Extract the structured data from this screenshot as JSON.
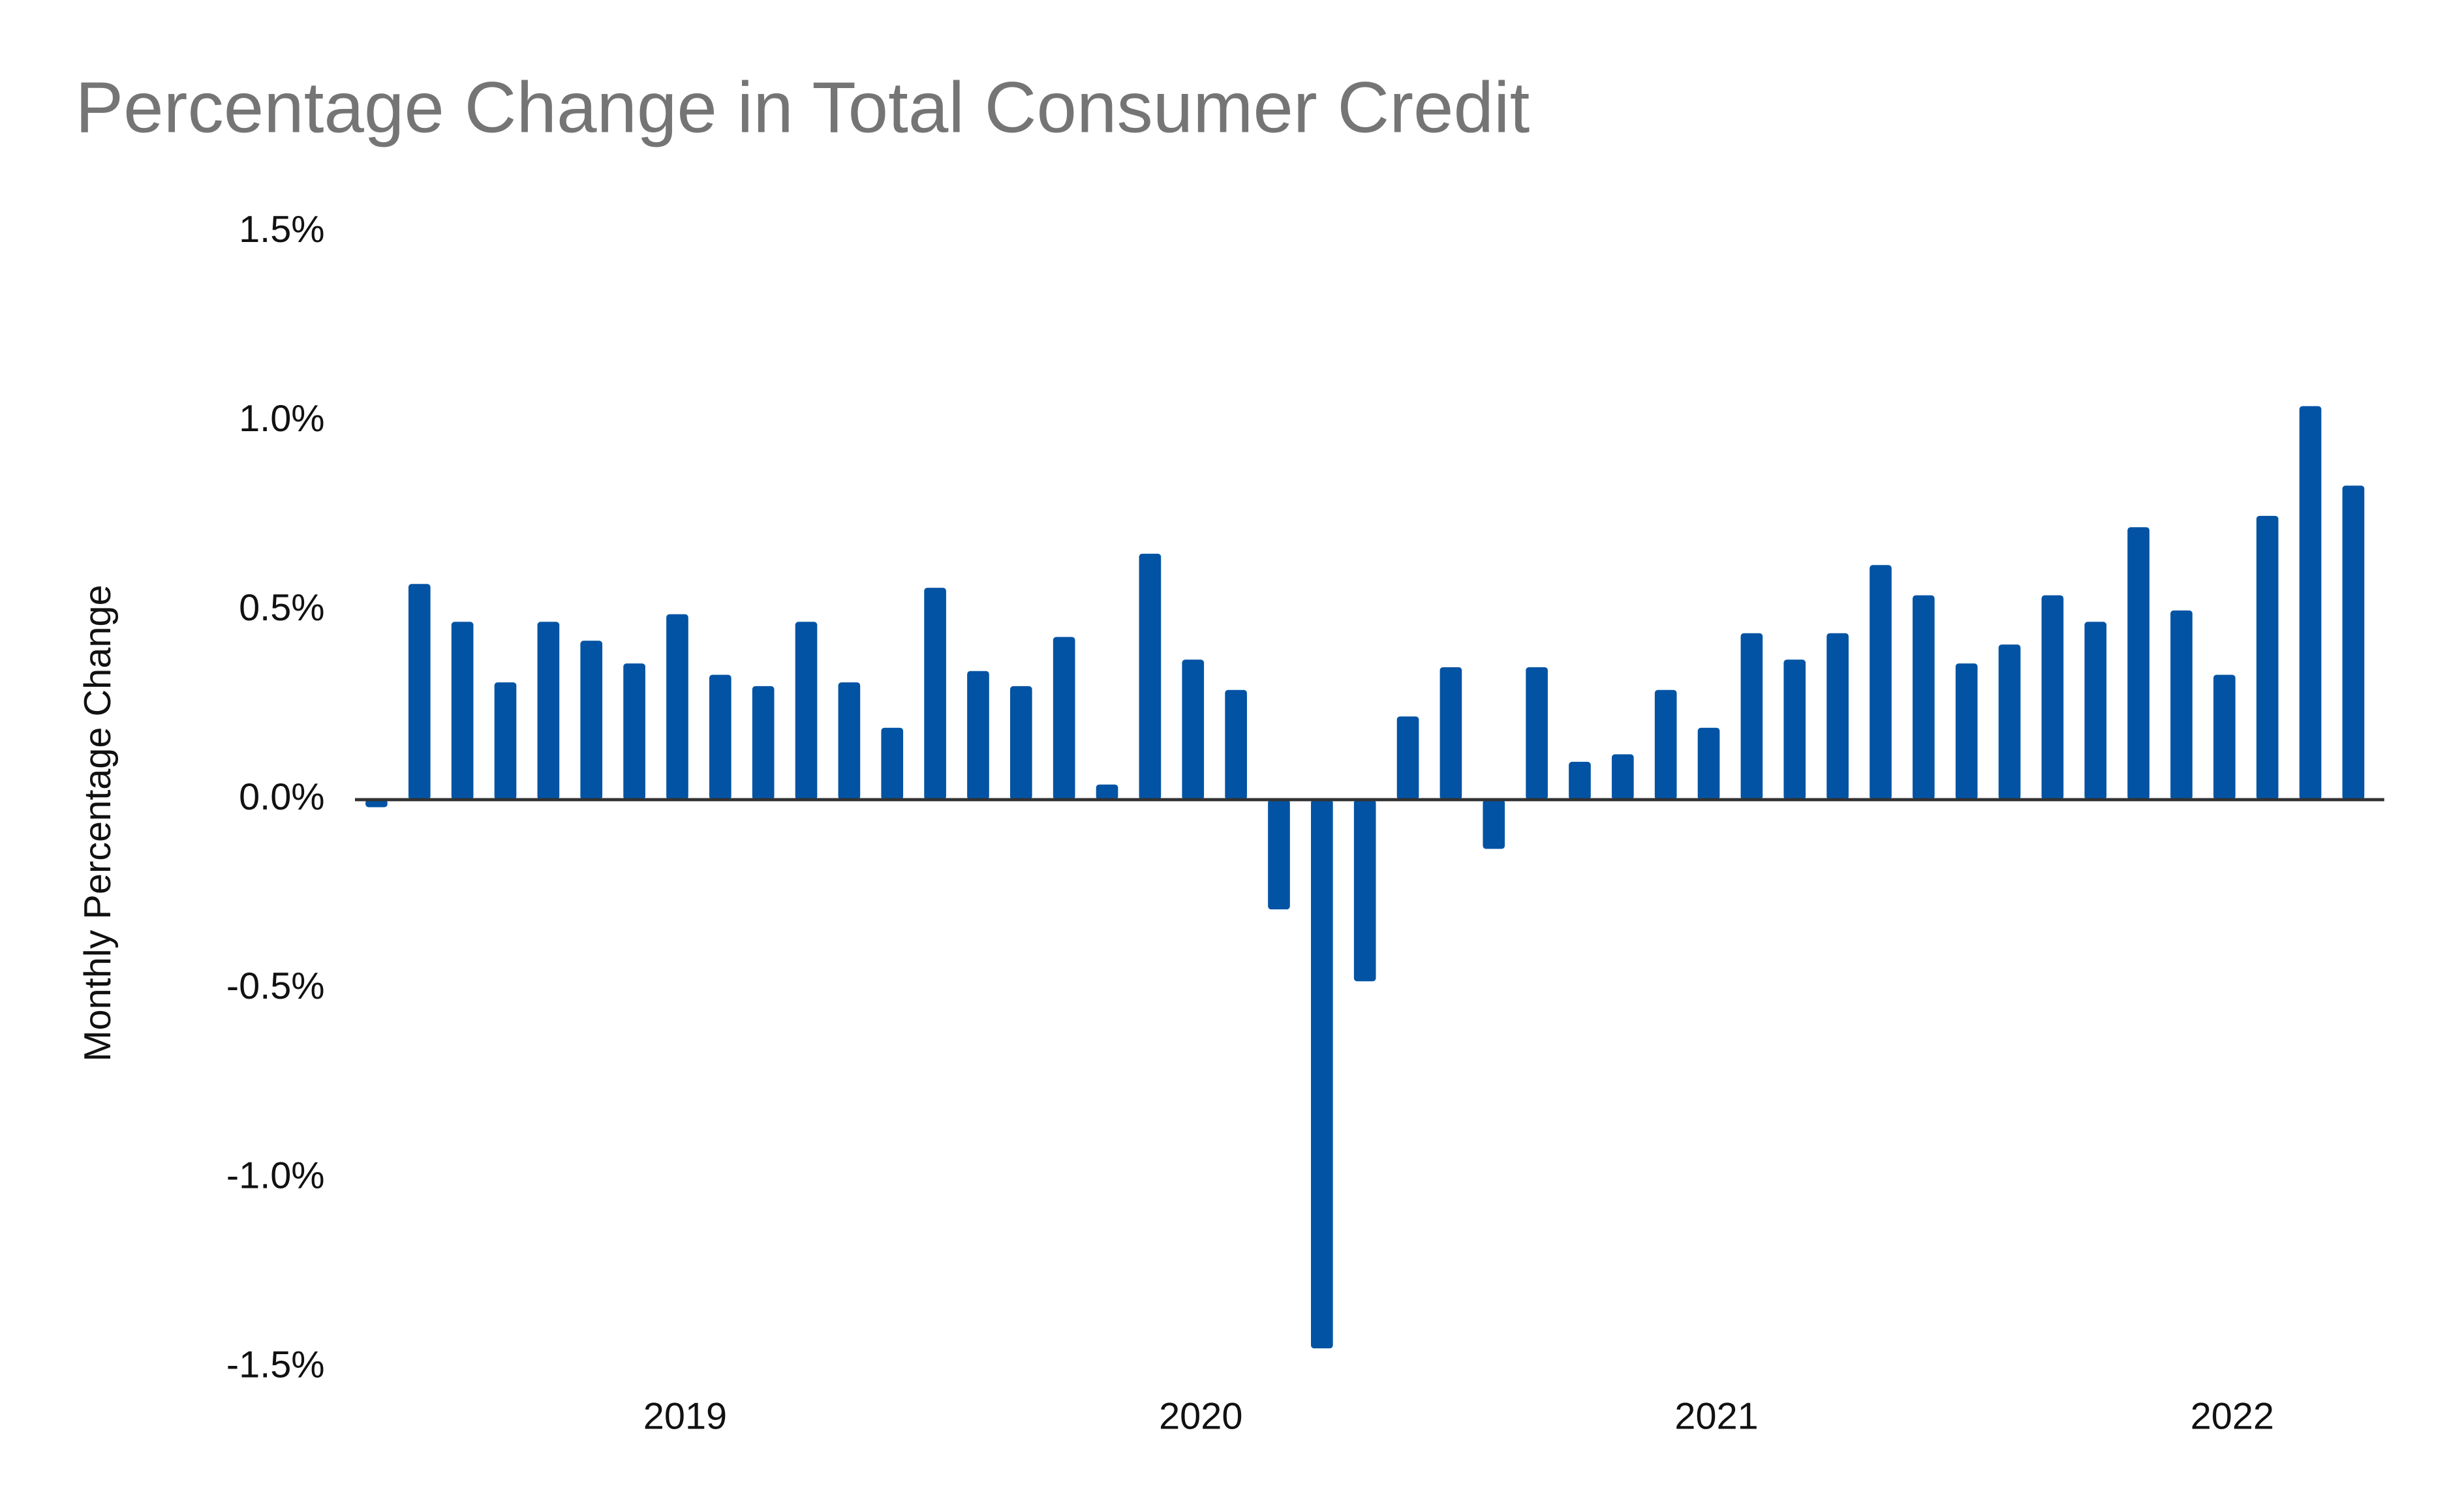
{
  "chart_data": {
    "type": "bar",
    "title": "Percentage Change in Total Consumer Credit",
    "y_label": "Monthly Percentage Change",
    "categories": [
      null,
      null,
      null,
      null,
      null,
      null,
      null,
      "2019",
      null,
      null,
      null,
      null,
      null,
      null,
      null,
      null,
      null,
      null,
      null,
      "2020",
      null,
      null,
      null,
      null,
      null,
      null,
      null,
      null,
      null,
      null,
      null,
      "2021",
      null,
      null,
      null,
      null,
      null,
      null,
      null,
      null,
      null,
      null,
      null,
      "2022",
      null,
      null,
      null
    ],
    "values": [
      -0.02,
      0.57,
      0.47,
      0.31,
      0.47,
      0.42,
      0.36,
      0.49,
      0.33,
      0.3,
      0.47,
      0.31,
      0.19,
      0.56,
      0.34,
      0.3,
      0.43,
      0.04,
      0.65,
      0.37,
      0.29,
      -0.29,
      -1.45,
      -0.48,
      0.22,
      0.35,
      -0.13,
      0.35,
      0.1,
      0.12,
      0.29,
      0.19,
      0.44,
      0.37,
      0.44,
      0.62,
      0.54,
      0.36,
      0.41,
      0.54,
      0.47,
      0.72,
      0.5,
      0.33,
      0.75,
      1.04,
      0.83
    ],
    "color": "#0353a4",
    "ylim": [
      -1.5,
      1.5
    ],
    "yticks": [
      {
        "value": -1.5,
        "label": "-1.5%"
      },
      {
        "value": -1.0,
        "label": "-1.0%"
      },
      {
        "value": -0.5,
        "label": "-0.5%"
      },
      {
        "value": 0,
        "label": "0.0%"
      },
      {
        "value": 0.5,
        "label": "0.5%"
      },
      {
        "value": 1.0,
        "label": "1.0%"
      },
      {
        "value": 1.5,
        "label": "1.5%"
      }
    ],
    "grid": false
  }
}
